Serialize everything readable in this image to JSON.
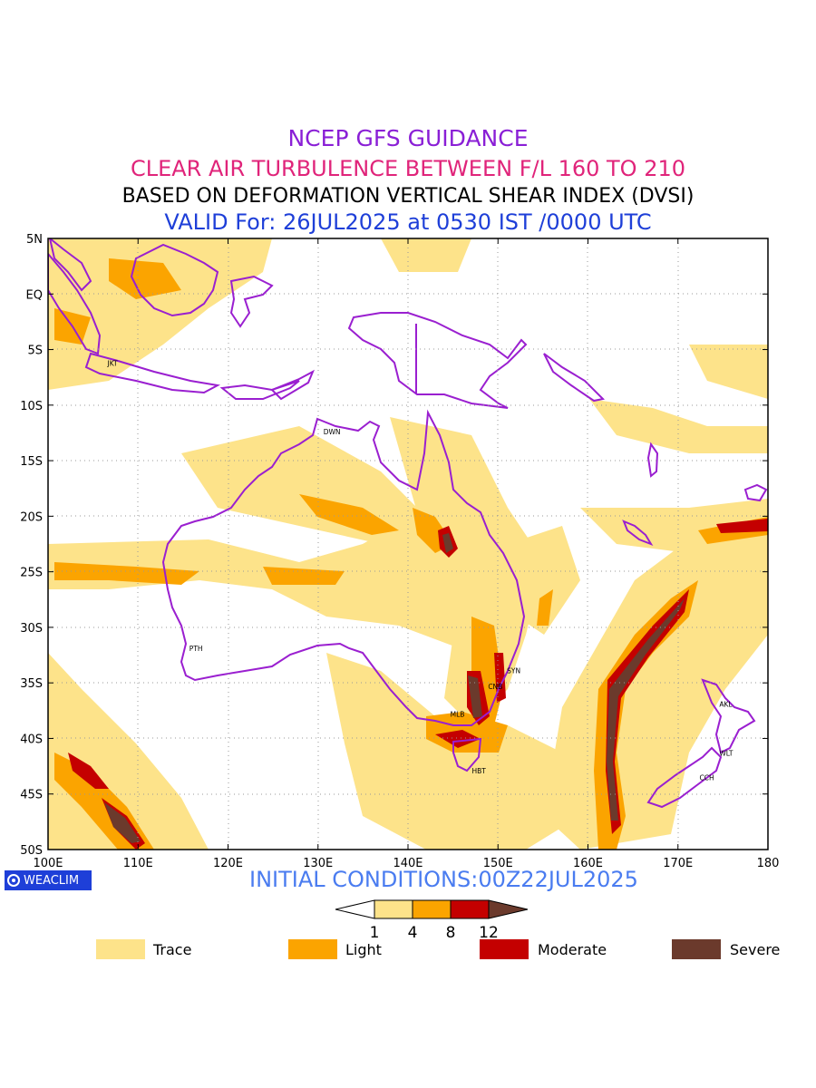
{
  "titles": {
    "line1": "NCEP GFS GUIDANCE",
    "line2": "CLEAR AIR TURBULENCE BETWEEN F/L 160 TO 210",
    "line3": "BASED ON DEFORMATION VERTICAL SHEAR INDEX (DVSI)",
    "line4": "VALID For: 26JUL2025 at 0530 IST /0000 UTC"
  },
  "colors": {
    "line1": "#8a1fd6",
    "line2": "#e0247a",
    "line3": "#000000",
    "line4": "#1e3fd8",
    "coast": "#9a1fd0",
    "trace": "#fde38a",
    "light": "#fba400",
    "moderate": "#c40000",
    "severe": "#6b3a2c",
    "init": "#4a7cf0",
    "logo": "#1e3fd8"
  },
  "map": {
    "lat_labels": [
      "5N",
      "EQ",
      "5S",
      "10S",
      "15S",
      "20S",
      "25S",
      "30S",
      "35S",
      "40S",
      "45S",
      "50S"
    ],
    "lon_labels": [
      "100E",
      "110E",
      "120E",
      "130E",
      "140E",
      "150E",
      "160E",
      "170E",
      "180"
    ],
    "extent": {
      "lon_min": 100,
      "lon_max": 180,
      "lat_min": -50,
      "lat_max": 5
    },
    "cities": [
      {
        "name": "JKT",
        "lon": 106.8,
        "lat": -6.2
      },
      {
        "name": "DWN",
        "lon": 130.8,
        "lat": -12.4
      },
      {
        "name": "PTH",
        "lon": 115.9,
        "lat": -31.9
      },
      {
        "name": "SYN",
        "lon": 151.2,
        "lat": -33.9
      },
      {
        "name": "CNB",
        "lon": 149.1,
        "lat": -35.3
      },
      {
        "name": "MLB",
        "lon": 144.9,
        "lat": -37.8
      },
      {
        "name": "HBT",
        "lon": 147.3,
        "lat": -42.9
      },
      {
        "name": "AKL",
        "lon": 174.8,
        "lat": -36.9
      },
      {
        "name": "WLT",
        "lon": 174.8,
        "lat": -41.3
      },
      {
        "name": "CCH",
        "lon": 172.6,
        "lat": -43.5
      }
    ]
  },
  "brand": {
    "logo_text": "WEACLIM"
  },
  "init": "INITIAL CONDITIONS:00Z22JUL2025",
  "colorbar": {
    "ticks": [
      "1",
      "4",
      "8",
      "12"
    ]
  },
  "legend": [
    {
      "label": "Trace",
      "color": "#fde38a"
    },
    {
      "label": "Light",
      "color": "#fba400"
    },
    {
      "label": "Moderate",
      "color": "#c40000"
    },
    {
      "label": "Severe",
      "color": "#6b3a2c"
    }
  ]
}
